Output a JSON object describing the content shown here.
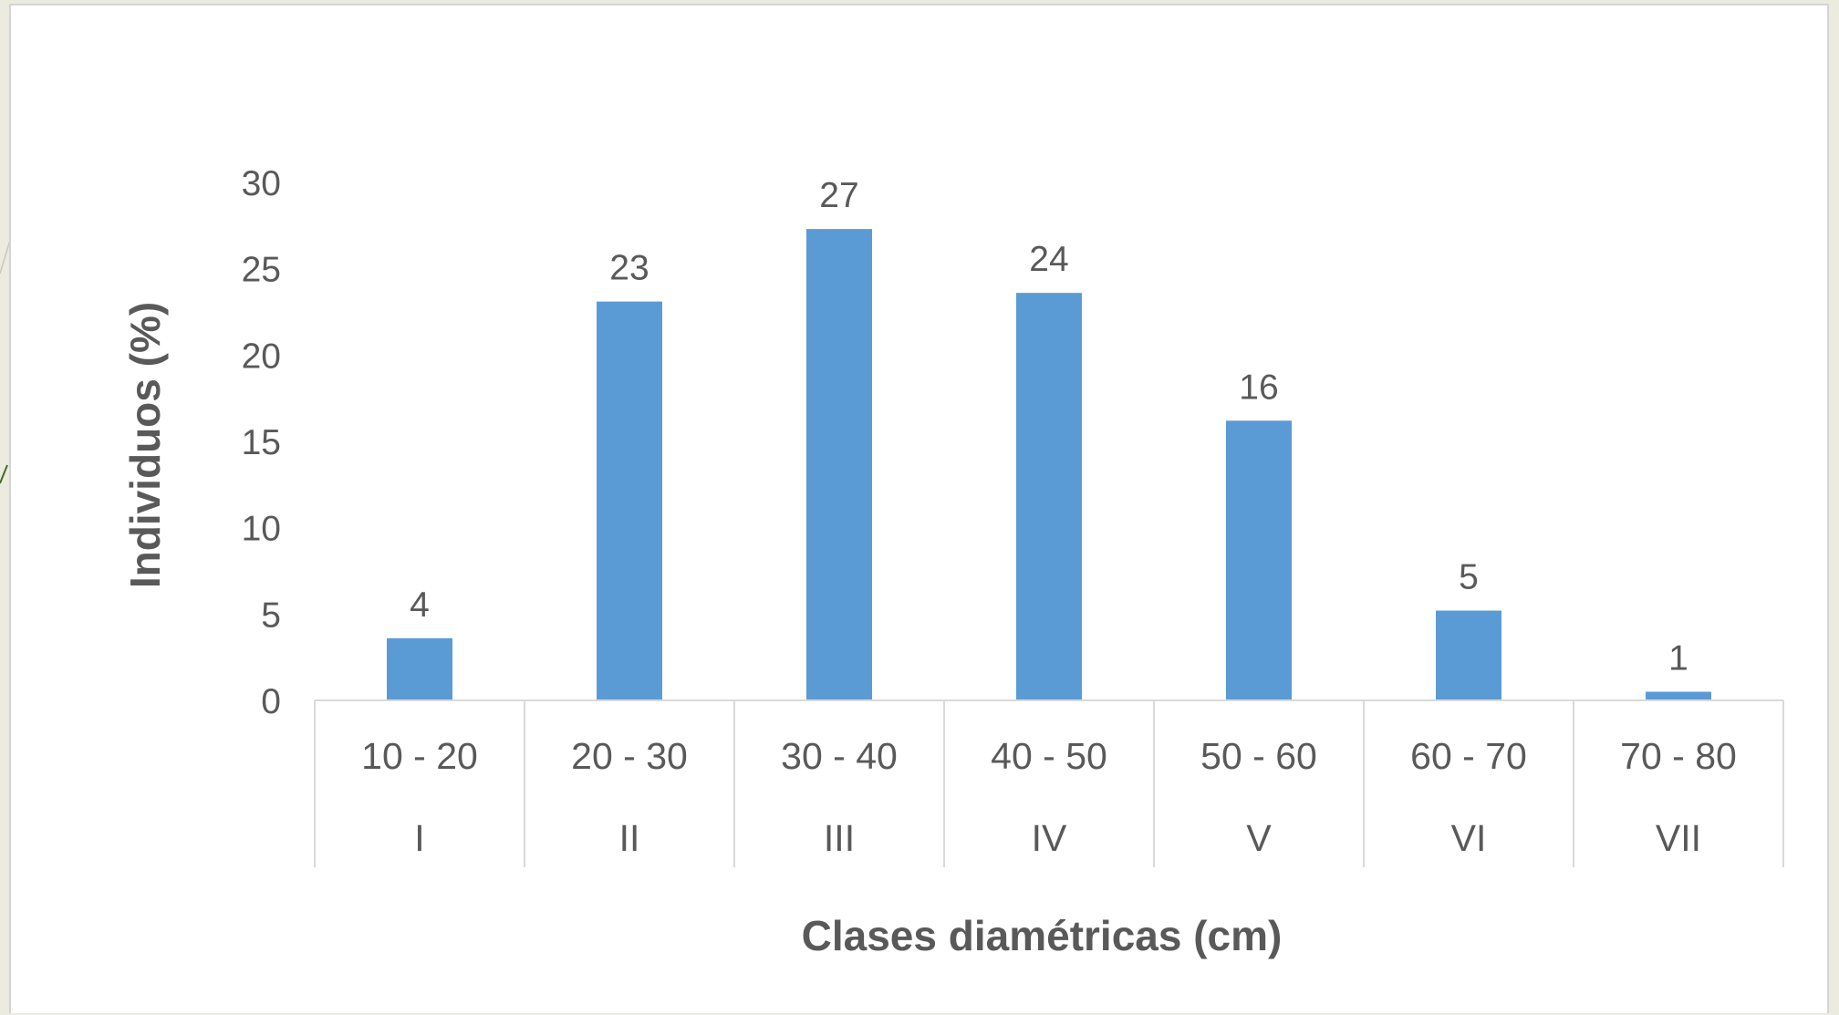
{
  "chart_data": {
    "type": "bar",
    "title": "",
    "xlabel": "Clases diamétricas (cm)",
    "ylabel": "Individuos (%)",
    "ylim": [
      0,
      30
    ],
    "yticks": [
      0,
      5,
      10,
      15,
      20,
      25,
      30
    ],
    "grid": false,
    "legend": "none",
    "categories": [
      {
        "range": "10 - 20",
        "class": "I"
      },
      {
        "range": "20 - 30",
        "class": "II"
      },
      {
        "range": "30 - 40",
        "class": "III"
      },
      {
        "range": "40  - 50",
        "class": "IV"
      },
      {
        "range": "50 - 60",
        "class": "V"
      },
      {
        "range": "60 - 70",
        "class": "VI"
      },
      {
        "range": "70 - 80",
        "class": "VII"
      }
    ],
    "values": [
      3.6,
      23.1,
      27.3,
      23.6,
      16.2,
      5.2,
      0.5
    ],
    "data_labels": [
      "4",
      "23",
      "27",
      "24",
      "16",
      "5",
      "1"
    ],
    "bar_color": "#5b9bd5",
    "axis_color": "#d9d9d9"
  }
}
